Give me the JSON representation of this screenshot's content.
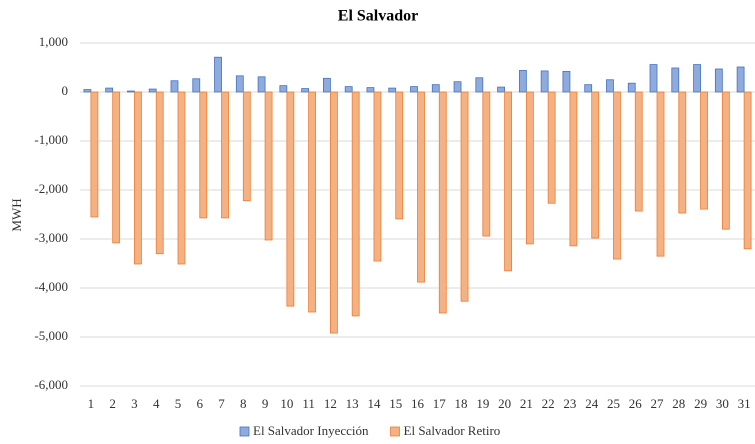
{
  "chart_data": {
    "type": "bar",
    "title": "El Salvador",
    "y_label": "MWH",
    "categories": [
      "1",
      "2",
      "3",
      "4",
      "5",
      "6",
      "7",
      "8",
      "9",
      "10",
      "11",
      "12",
      "13",
      "14",
      "15",
      "16",
      "17",
      "18",
      "19",
      "20",
      "21",
      "22",
      "23",
      "24",
      "25",
      "26",
      "27",
      "28",
      "29",
      "30",
      "31"
    ],
    "series": [
      {
        "name": "El Salvador Inyección",
        "color": "#8faadc",
        "values": [
          50,
          80,
          20,
          60,
          230,
          270,
          710,
          330,
          310,
          130,
          70,
          280,
          110,
          90,
          80,
          110,
          150,
          210,
          290,
          100,
          440,
          430,
          420,
          150,
          250,
          180,
          560,
          490,
          560,
          470,
          510
        ]
      },
      {
        "name": "El Salvador Retiro",
        "color": "#f4b183",
        "values": [
          -2550,
          -3080,
          -3510,
          -3300,
          -3510,
          -2570,
          -2570,
          -2220,
          -3020,
          -4370,
          -4490,
          -4920,
          -4570,
          -3450,
          -2590,
          -3880,
          -4510,
          -4270,
          -2940,
          -3650,
          -3100,
          -2270,
          -3140,
          -2980,
          -3410,
          -2430,
          -3350,
          -2470,
          -2390,
          -2800,
          -3200
        ]
      }
    ],
    "ylim": [
      -6000,
      1000
    ],
    "yticks": [
      {
        "value": -6000,
        "label": "-6,000"
      },
      {
        "value": -5000,
        "label": "-5,000"
      },
      {
        "value": -4000,
        "label": "-4,000"
      },
      {
        "value": -3000,
        "label": "-3,000"
      },
      {
        "value": -2000,
        "label": "-2,000"
      },
      {
        "value": -1000,
        "label": "-1,000"
      },
      0,
      {
        "value": 1000,
        "label": "1,000"
      }
    ],
    "grid": true,
    "legend": "bottom"
  }
}
